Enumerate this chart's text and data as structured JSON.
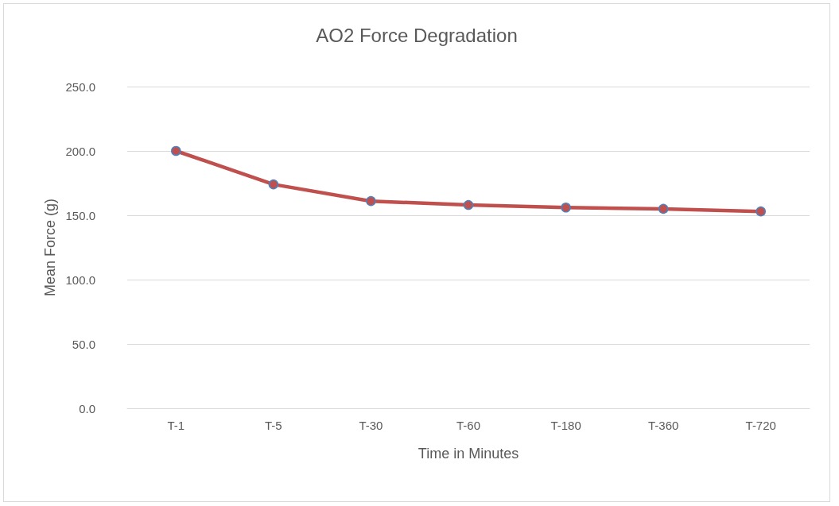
{
  "chart_data": {
    "type": "line",
    "title": "AO2 Force Degradation",
    "xlabel": "Time in Minutes",
    "ylabel": "Mean Force (g)",
    "categories": [
      "T-1",
      "T-5",
      "T-30",
      "T-60",
      "T-180",
      "T-360",
      "T-720"
    ],
    "series": [
      {
        "color": "#c0504d",
        "values": [
          200,
          174,
          161,
          158,
          156,
          155,
          153
        ]
      }
    ],
    "ylim": [
      0,
      250
    ],
    "yticks": [
      {
        "value": 0,
        "label": "0.0"
      },
      {
        "value": 50,
        "label": "50.0"
      },
      {
        "value": 100,
        "label": "100.0"
      },
      {
        "value": 150,
        "label": "150.0"
      },
      {
        "value": 200,
        "label": "200.0"
      },
      {
        "value": 250,
        "label": "250.0"
      }
    ],
    "grid": "y",
    "marker": "circle",
    "line_style": "solid"
  }
}
